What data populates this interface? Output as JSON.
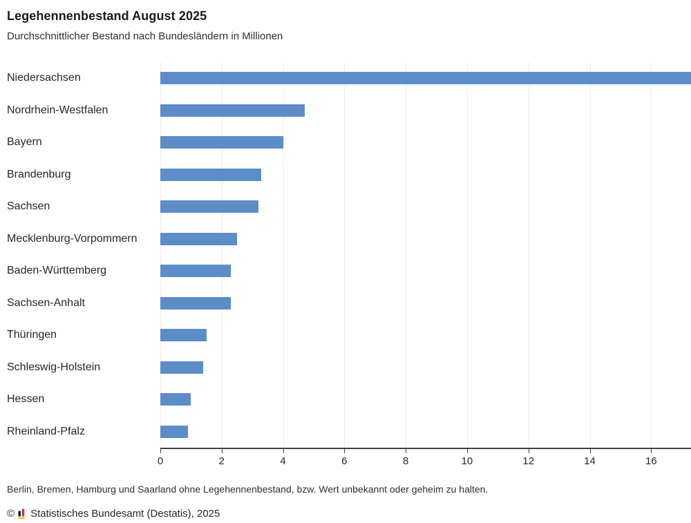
{
  "header": {
    "title": "Legehennenbestand August 2025",
    "subtitle": "Durchschnittlicher Bestand nach Bundesländern in Millionen"
  },
  "chart_data": {
    "type": "bar",
    "orientation": "horizontal",
    "title": "Legehennenbestand August 2025",
    "subtitle": "Durchschnittlicher Bestand nach Bundesländern in Millionen",
    "unit": "Millionen",
    "categories": [
      "Niedersachsen",
      "Nordrhein-Westfalen",
      "Bayern",
      "Brandenburg",
      "Sachsen",
      "Mecklenburg-Vorpommern",
      "Baden-Württemberg",
      "Sachsen-Anhalt",
      "Thüringen",
      "Schleswig-Holstein",
      "Hessen",
      "Rheinland-Pfalz"
    ],
    "values": [
      17.4,
      4.7,
      4.0,
      3.3,
      3.2,
      2.5,
      2.3,
      2.3,
      1.5,
      1.4,
      1.0,
      0.9
    ],
    "xlabel": "",
    "ylabel": "",
    "xlim": [
      0,
      17.3
    ],
    "xticks": [
      0,
      2,
      4,
      6,
      8,
      10,
      12,
      14,
      16
    ],
    "grid": true,
    "legend": "none",
    "note_first_bar_clipped": "Niedersachsen bar extends to the right edge of the plot",
    "bar_color": "#5b8dc8"
  },
  "footer": {
    "note": "Berlin, Bremen, Hamburg und Saarland ohne Legehennenbestand, bzw. Wert unbekannt oder geheim zu halten.",
    "copyright_symbol": "©",
    "source": "Statistisches Bundesamt (Destatis), 2025",
    "logo_icon": "destatis-bars-icon"
  },
  "colors": {
    "bar": "#5b8dc8",
    "axis": "#3f3f3f",
    "gridline": "#ececec",
    "text": "#262626",
    "logo_black": "#1a1a1a",
    "logo_red": "#cc3333",
    "logo_yellow": "#f2c100"
  }
}
